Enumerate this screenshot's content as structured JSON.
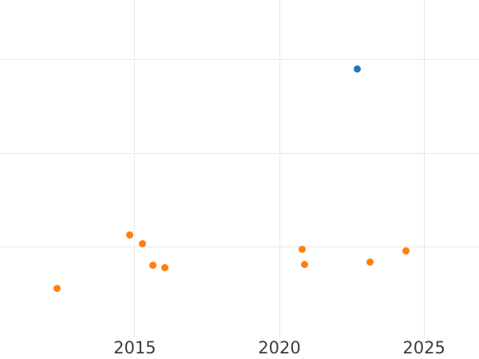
{
  "chart_data": {
    "type": "scatter",
    "title": "",
    "xlabel": "",
    "ylabel": "",
    "x_tick_labels": [
      "2015",
      "2020",
      "2025"
    ],
    "x_tick_values": [
      2015,
      2020,
      2025
    ],
    "y_gridline_values": [
      0,
      1,
      2
    ],
    "y_tick_labels_visible": false,
    "xlim": [
      2010.34,
      2026.9
    ],
    "ylim": [
      -0.96,
      2.63
    ],
    "grid": true,
    "legend_position": "none",
    "note": "y-axis has no visible labels; y values are in gridline units where 0 = lowest visible horizontal gridline and 1 unit = one gridline spacing",
    "series": [
      {
        "name": "blue-series",
        "color": "#1f77b4",
        "marker": "circle",
        "marker_size_px": 9,
        "points": [
          {
            "x": 2022.69,
            "y": 1.9
          }
        ]
      },
      {
        "name": "orange-series",
        "color": "#ff7f0e",
        "marker": "circle",
        "marker_size_px": 9,
        "points": [
          {
            "x": 2012.32,
            "y": -0.44
          },
          {
            "x": 2014.83,
            "y": 0.13
          },
          {
            "x": 2015.28,
            "y": 0.04
          },
          {
            "x": 2015.63,
            "y": -0.19
          },
          {
            "x": 2016.04,
            "y": -0.22
          },
          {
            "x": 2020.8,
            "y": -0.02
          },
          {
            "x": 2020.88,
            "y": -0.18
          },
          {
            "x": 2023.12,
            "y": -0.16
          },
          {
            "x": 2024.37,
            "y": -0.04
          }
        ]
      }
    ]
  },
  "style": {
    "background_color": "#ffffff",
    "grid_color": "#e8e8e8",
    "tick_label_color": "#3c3c3c"
  }
}
